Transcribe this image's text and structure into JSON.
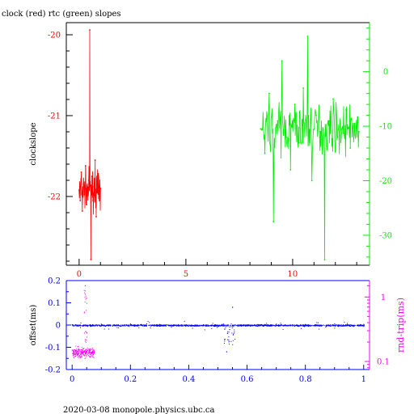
{
  "title": "clock (red) rtc (green) slopes",
  "footer": "2020-03-08  monopole.physics.ubc.ca",
  "colors": {
    "clock": "#ff0000",
    "rtc": "#00ee00",
    "offset": "#0000ff",
    "rndtrip": "#ff00ff",
    "axes": "#000000"
  },
  "chart_data": [
    {
      "type": "line",
      "title": "clock (red) rtc (green) slopes",
      "xlim": [
        -0.6,
        13.6
      ],
      "x_ticks": [
        "0",
        "5",
        "10"
      ],
      "x_tick_values": [
        0,
        5,
        10
      ],
      "ylabel_left": "clockslope",
      "ylim_left": [
        -22.85,
        -19.85
      ],
      "y_ticks_left": [
        "-20",
        "-21",
        "-22"
      ],
      "y_tick_values_left": [
        -20,
        -21,
        -22
      ],
      "ylim_right": [
        -35.5,
        9.0
      ],
      "y_ticks_right": [
        "0",
        "-10",
        "-20",
        "-30"
      ],
      "y_tick_values_right": [
        0,
        -10,
        -20,
        -30
      ],
      "series": [
        {
          "name": "clock",
          "axis": "left",
          "x": [
            0.0,
            0.05,
            0.1,
            0.15,
            0.2,
            0.25,
            0.3,
            0.35,
            0.4,
            0.45,
            0.5,
            0.55,
            0.6,
            0.65,
            0.7,
            0.75,
            0.8,
            0.85,
            0.9,
            0.95,
            1.0
          ],
          "values": [
            -21.92,
            -22.05,
            -21.7,
            -22.18,
            -21.85,
            -21.98,
            -21.62,
            -22.1,
            -21.95,
            -21.8,
            -19.94,
            -22.78,
            -21.75,
            -22.05,
            -21.88,
            -21.55,
            -22.25,
            -21.95,
            -21.72,
            -22.05,
            -21.9
          ]
        },
        {
          "name": "rtc",
          "axis": "right",
          "x": [
            8.5,
            8.7,
            8.9,
            9.1,
            9.3,
            9.5,
            9.7,
            9.9,
            10.1,
            10.3,
            10.5,
            10.7,
            10.9,
            11.1,
            11.3,
            11.5,
            11.7,
            11.9,
            12.1,
            12.3,
            12.5,
            12.7,
            12.9,
            13.1
          ],
          "values": [
            -10.5,
            -15.0,
            -4.0,
            -27.5,
            -9.0,
            2.0,
            -12.0,
            -18.0,
            -6.0,
            -13.0,
            -3.0,
            6.5,
            -20.0,
            -8.0,
            -11.0,
            -34.5,
            -9.0,
            -5.0,
            -12.0,
            -10.5,
            -7.0,
            -14.0,
            -9.5,
            -11.0
          ]
        }
      ]
    },
    {
      "type": "scatter",
      "xlim": [
        -0.02,
        1.02
      ],
      "x_ticks": [
        "0",
        "0.2",
        "0.4",
        "0.6",
        "0.8",
        "1"
      ],
      "x_tick_values": [
        0,
        0.2,
        0.4,
        0.6,
        0.8,
        1.0
      ],
      "ylabel_left": "offset(ms)",
      "ylim_left": [
        -0.2,
        0.2
      ],
      "y_ticks_left": [
        "0.2",
        "0.1",
        "0",
        "-0.1",
        "-0.2"
      ],
      "y_tick_values_left": [
        0.2,
        0.1,
        0.0,
        -0.1,
        -0.2
      ],
      "ylabel_right": "rnd-trip(ms)",
      "y_ticks_right": [
        "1",
        "0.1"
      ],
      "y_tick_values_right": [
        1,
        0.1
      ],
      "ylim_right": [
        0.075,
        1.8
      ],
      "right_scale": "log",
      "series": [
        {
          "name": "offset",
          "axis": "left",
          "x": [
            0.0,
            0.05,
            0.1,
            0.15,
            0.2,
            0.25,
            0.3,
            0.35,
            0.4,
            0.45,
            0.5,
            0.53,
            0.54,
            0.55,
            0.6,
            0.65,
            0.7,
            0.75,
            0.8,
            0.85,
            0.9,
            0.95,
            1.0
          ],
          "values": [
            0.002,
            -0.003,
            0.004,
            0.0,
            0.005,
            -0.002,
            0.003,
            0.001,
            -0.004,
            0.002,
            -0.006,
            -0.12,
            -0.02,
            0.08,
            -0.003,
            0.002,
            0.004,
            -0.001,
            0.003,
            0.0,
            0.005,
            -0.002,
            0.003
          ]
        },
        {
          "name": "rnd-trip",
          "axis": "right",
          "x": [
            0.0,
            0.01,
            0.02,
            0.03,
            0.04,
            0.045,
            0.05,
            0.06,
            0.07
          ],
          "values": [
            0.15,
            0.12,
            0.17,
            0.13,
            0.16,
            1.5,
            0.14,
            0.12,
            0.16
          ]
        }
      ]
    }
  ]
}
